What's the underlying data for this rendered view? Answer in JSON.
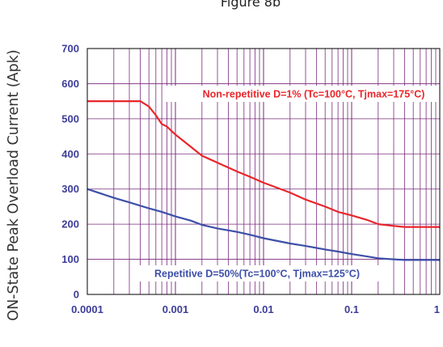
{
  "chart_data": {
    "type": "line",
    "title": "Figure 8b",
    "xlabel": "",
    "ylabel": "ON-State Peak Overload Current (Apk)",
    "xscale": "log",
    "xlim": [
      0.0001,
      1
    ],
    "ylim": [
      0,
      700
    ],
    "x_ticks": [
      "0.0001",
      "0.001",
      "0.01",
      "0.1",
      "1"
    ],
    "y_ticks": [
      "0",
      "100",
      "200",
      "300",
      "400",
      "500",
      "600",
      "700"
    ],
    "grid": true,
    "series": [
      {
        "name": "Non-repetitive D=1% (Tc=100°C, Tjmax=175°C)",
        "color": "#e8262b",
        "x": [
          0.0001,
          0.0002,
          0.0004,
          0.0005,
          0.0006,
          0.0007,
          0.0008,
          0.001,
          0.0015,
          0.002,
          0.003,
          0.005,
          0.007,
          0.01,
          0.02,
          0.03,
          0.05,
          0.07,
          0.1,
          0.15,
          0.2,
          0.3,
          0.4,
          1
        ],
        "y": [
          550,
          550,
          550,
          535,
          510,
          485,
          478,
          455,
          420,
          395,
          375,
          350,
          335,
          318,
          290,
          270,
          250,
          235,
          225,
          212,
          200,
          195,
          192,
          192
        ]
      },
      {
        "name": "Repetitive D=50%(Tc=100°C, Tjmax=125°C)",
        "color": "#3d4fa8",
        "x": [
          0.0001,
          0.0002,
          0.0003,
          0.0005,
          0.0007,
          0.001,
          0.0015,
          0.002,
          0.003,
          0.005,
          0.007,
          0.01,
          0.02,
          0.03,
          0.05,
          0.07,
          0.1,
          0.15,
          0.2,
          0.3,
          0.4,
          1
        ],
        "y": [
          300,
          275,
          262,
          245,
          235,
          222,
          210,
          198,
          188,
          178,
          170,
          160,
          145,
          138,
          128,
          122,
          115,
          108,
          103,
          100,
          98,
          98
        ]
      }
    ],
    "annotations": [
      {
        "text": "Non-repetitive D=1% (Tc=100°C, Tjmax=175°C)",
        "color": "#e8262b"
      },
      {
        "text": "Repetitive D=50%(Tc=100°C, Tjmax=125°C)",
        "color": "#3d4fa8"
      }
    ]
  },
  "colors": {
    "plot_background": "#ffffff",
    "grid": "#7b2a7d",
    "axis": "#000000",
    "tick_text": "#3d3d9a"
  }
}
